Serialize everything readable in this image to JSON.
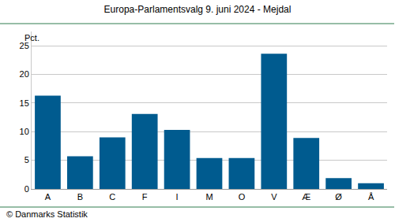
{
  "chart_data": {
    "type": "bar",
    "title": "Europa-Parlamentsvalg 9. juni 2024 - Mejdal",
    "ylabel": "Pct.",
    "categories": [
      "A",
      "B",
      "C",
      "F",
      "I",
      "M",
      "O",
      "V",
      "Æ",
      "Ø",
      "Å"
    ],
    "values": [
      16.3,
      5.7,
      9.0,
      13.1,
      10.3,
      5.4,
      5.4,
      23.6,
      8.9,
      1.9,
      1.0
    ],
    "color": "#005b8f",
    "ylim": [
      0,
      27.5
    ],
    "yticks": [
      0,
      5,
      10,
      15,
      20,
      25
    ],
    "grid": true,
    "annotations": [
      {
        "text": "© Danmarks Statistik"
      }
    ]
  }
}
